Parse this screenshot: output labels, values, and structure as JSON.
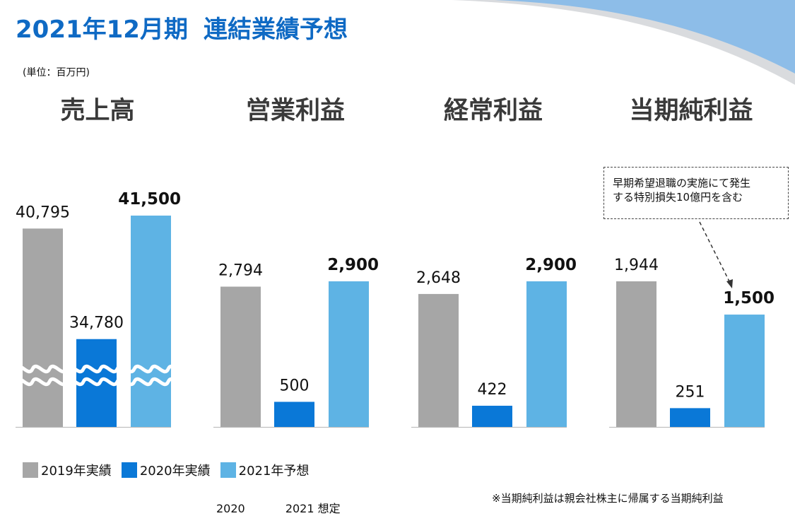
{
  "header": {
    "title_part1": "2021年12月期",
    "title_part2": "連結業績予想",
    "unit": "(単位：百万円)"
  },
  "colors": {
    "y2019": "#a6a6a6",
    "y2020": "#0a78d7",
    "y2021": "#5eb3e4",
    "title": "#0f6ac4"
  },
  "chart_data": [
    {
      "type": "bar",
      "title": "売上高",
      "categories": [
        "2019年実績",
        "2020年実績",
        "2021年予想"
      ],
      "values": [
        40795,
        34780,
        41500
      ],
      "value_labels": [
        "40,795",
        "34,780",
        "41,500"
      ],
      "axis_break": true
    },
    {
      "type": "bar",
      "title": "営業利益",
      "categories": [
        "2019年実績",
        "2020年実績",
        "2021年予想"
      ],
      "values": [
        2794,
        500,
        2900
      ],
      "value_labels": [
        "2,794",
        "500",
        "2,900"
      ]
    },
    {
      "type": "bar",
      "title": "経常利益",
      "categories": [
        "2019年実績",
        "2020年実績",
        "2021年予想"
      ],
      "values": [
        2648,
        422,
        2900
      ],
      "value_labels": [
        "2,648",
        "422",
        "2,900"
      ]
    },
    {
      "type": "bar",
      "title": "当期純利益",
      "categories": [
        "2019年実績",
        "2020年実績",
        "2021年予想"
      ],
      "values": [
        1944,
        251,
        1500
      ],
      "value_labels": [
        "1,944",
        "251",
        "1,500"
      ]
    }
  ],
  "legend": [
    "2019年実績",
    "2020年実績",
    "2021年予想"
  ],
  "callout": {
    "line1": "早期希望退職の実施にて発生",
    "line2": "する特別損失10億円を含む"
  },
  "footnote": "※当期純利益は親会社株主に帰属する当期純利益",
  "cut_off_labels": [
    "2020",
    "2021 想定"
  ]
}
